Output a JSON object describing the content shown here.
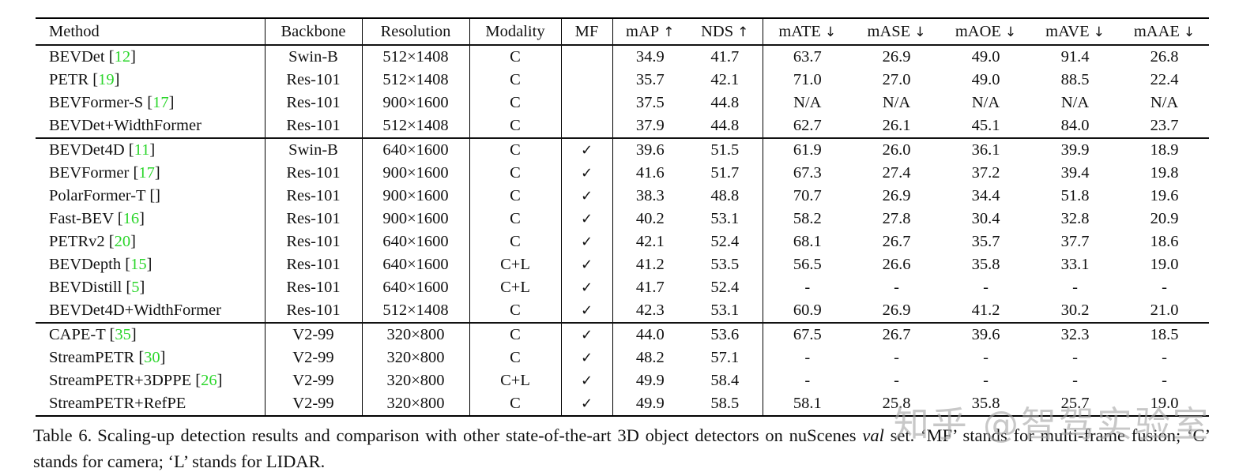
{
  "colors": {
    "citation_green": "#2bd62b",
    "watermark_gray": "#a8a8a8"
  },
  "watermark": {
    "text": "知乎 @智驾实验室"
  },
  "caption": {
    "label": "Table 6.",
    "before_italic": "Scaling-up detection results and comparison with other state-of-the-art 3D object detectors on nuScenes ",
    "italic": "val",
    "after_italic": " set. ‘MF’ stands for multi-frame fusion; ‘C’ stands for camera; ‘L’ stands for LIDAR."
  },
  "table": {
    "checkmark": "✓",
    "columns": [
      {
        "key": "method",
        "label": "Method",
        "arrow": null
      },
      {
        "key": "backbone",
        "label": "Backbone",
        "arrow": null
      },
      {
        "key": "resolution",
        "label": "Resolution",
        "arrow": null
      },
      {
        "key": "modality",
        "label": "Modality",
        "arrow": null
      },
      {
        "key": "mf",
        "label": "MF",
        "arrow": null
      },
      {
        "key": "map",
        "label": "mAP",
        "arrow": "↑"
      },
      {
        "key": "nds",
        "label": "NDS",
        "arrow": "↑"
      },
      {
        "key": "mate",
        "label": "mATE",
        "arrow": "↓"
      },
      {
        "key": "mase",
        "label": "mASE",
        "arrow": "↓"
      },
      {
        "key": "maoe",
        "label": "mAOE",
        "arrow": "↓"
      },
      {
        "key": "mave",
        "label": "mAVE",
        "arrow": "↓"
      },
      {
        "key": "maae",
        "label": "mAAE",
        "arrow": "↓"
      }
    ],
    "sections": [
      {
        "rows": [
          {
            "method": "BEVDet",
            "cite": "12",
            "backbone": "Swin-B",
            "resolution": "512×1408",
            "modality": "C",
            "mf": false,
            "metrics": [
              "34.9",
              "41.7",
              "63.7",
              "26.9",
              "49.0",
              "91.4",
              "26.8"
            ]
          },
          {
            "method": "PETR",
            "cite": "19",
            "backbone": "Res-101",
            "resolution": "512×1408",
            "modality": "C",
            "mf": false,
            "metrics": [
              "35.7",
              "42.1",
              "71.0",
              "27.0",
              "49.0",
              "88.5",
              "22.4"
            ]
          },
          {
            "method": "BEVFormer-S",
            "cite": "17",
            "backbone": "Res-101",
            "resolution": "900×1600",
            "modality": "C",
            "mf": false,
            "metrics": [
              "37.5",
              "44.8",
              "N/A",
              "N/A",
              "N/A",
              "N/A",
              "N/A"
            ]
          },
          {
            "method": "BEVDet+WidthFormer",
            "cite": null,
            "backbone": "Res-101",
            "resolution": "512×1408",
            "modality": "C",
            "mf": false,
            "metrics": [
              "37.9",
              "44.8",
              "62.7",
              "26.1",
              "45.1",
              "84.0",
              "23.7"
            ]
          }
        ]
      },
      {
        "rows": [
          {
            "method": "BEVDet4D",
            "cite": "11",
            "backbone": "Swin-B",
            "resolution": "640×1600",
            "modality": "C",
            "mf": true,
            "metrics": [
              "39.6",
              "51.5",
              "61.9",
              "26.0",
              "36.1",
              "39.9",
              "18.9"
            ]
          },
          {
            "method": "BEVFormer",
            "cite": "17",
            "backbone": "Res-101",
            "resolution": "900×1600",
            "modality": "C",
            "mf": true,
            "metrics": [
              "41.6",
              "51.7",
              "67.3",
              "27.4",
              "37.2",
              "39.4",
              "19.8"
            ]
          },
          {
            "method": "PolarFormer-T",
            "cite": "",
            "backbone": "Res-101",
            "resolution": "900×1600",
            "modality": "C",
            "mf": true,
            "metrics": [
              "38.3",
              "48.8",
              "70.7",
              "26.9",
              "34.4",
              "51.8",
              "19.6"
            ]
          },
          {
            "method": "Fast-BEV",
            "cite": "16",
            "backbone": "Res-101",
            "resolution": "900×1600",
            "modality": "C",
            "mf": true,
            "metrics": [
              "40.2",
              "53.1",
              "58.2",
              "27.8",
              "30.4",
              "32.8",
              "20.9"
            ]
          },
          {
            "method": "PETRv2",
            "cite": "20",
            "backbone": "Res-101",
            "resolution": "640×1600",
            "modality": "C",
            "mf": true,
            "metrics": [
              "42.1",
              "52.4",
              "68.1",
              "26.7",
              "35.7",
              "37.7",
              "18.6"
            ]
          },
          {
            "method": "BEVDepth",
            "cite": "15",
            "backbone": "Res-101",
            "resolution": "640×1600",
            "modality": "C+L",
            "mf": true,
            "metrics": [
              "41.2",
              "53.5",
              "56.5",
              "26.6",
              "35.8",
              "33.1",
              "19.0"
            ]
          },
          {
            "method": "BEVDistill",
            "cite": "5",
            "backbone": "Res-101",
            "resolution": "640×1600",
            "modality": "C+L",
            "mf": true,
            "metrics": [
              "41.7",
              "52.4",
              "-",
              "-",
              "-",
              "-",
              "-"
            ]
          },
          {
            "method": "BEVDet4D+WidthFormer",
            "cite": null,
            "backbone": "Res-101",
            "resolution": "512×1408",
            "modality": "C",
            "mf": true,
            "metrics": [
              "42.3",
              "53.1",
              "60.9",
              "26.9",
              "41.2",
              "30.2",
              "21.0"
            ]
          }
        ]
      },
      {
        "rows": [
          {
            "method": "CAPE-T",
            "cite": "35",
            "backbone": "V2-99",
            "resolution": "320×800",
            "modality": "C",
            "mf": true,
            "metrics": [
              "44.0",
              "53.6",
              "67.5",
              "26.7",
              "39.6",
              "32.3",
              "18.5"
            ]
          },
          {
            "method": "StreamPETR",
            "cite": "30",
            "backbone": "V2-99",
            "resolution": "320×800",
            "modality": "C",
            "mf": true,
            "metrics": [
              "48.2",
              "57.1",
              "-",
              "-",
              "-",
              "-",
              "-"
            ]
          },
          {
            "method": "StreamPETR+3DPPE",
            "cite": "26",
            "backbone": "V2-99",
            "resolution": "320×800",
            "modality": "C+L",
            "mf": true,
            "metrics": [
              "49.9",
              "58.4",
              "-",
              "-",
              "-",
              "-",
              "-"
            ]
          },
          {
            "method": "StreamPETR+RefPE",
            "cite": null,
            "backbone": "V2-99",
            "resolution": "320×800",
            "modality": "C",
            "mf": true,
            "metrics": [
              "49.9",
              "58.5",
              "58.1",
              "25.8",
              "35.8",
              "25.7",
              "19.0"
            ]
          }
        ]
      }
    ]
  }
}
